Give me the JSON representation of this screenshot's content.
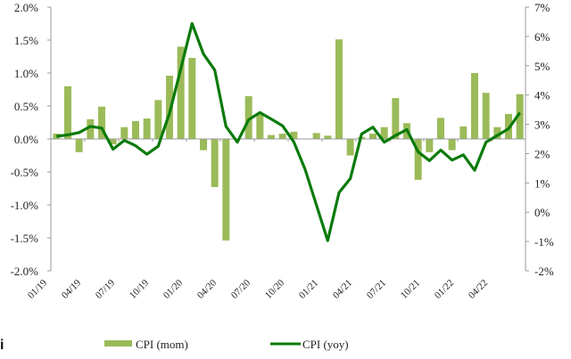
{
  "colors": {
    "bar": "#9bbb59",
    "line": "#0a7a0a",
    "axis": "#999999"
  },
  "corner_glyph": "i",
  "chart_data": {
    "type": "bar+line",
    "grid": false,
    "legend_placement": "bottom",
    "months": [
      "01/19",
      "02/19",
      "03/19",
      "04/19",
      "05/19",
      "06/19",
      "07/19",
      "08/19",
      "09/19",
      "10/19",
      "11/19",
      "12/19",
      "01/20",
      "02/20",
      "03/20",
      "04/20",
      "05/20",
      "06/20",
      "07/20",
      "08/20",
      "09/20",
      "10/20",
      "11/20",
      "12/20",
      "01/21",
      "02/21",
      "03/21",
      "04/21",
      "05/21",
      "06/21",
      "07/21",
      "08/21",
      "09/21",
      "10/21",
      "11/21",
      "12/21",
      "01/22",
      "02/22",
      "03/22",
      "04/22",
      "05/22",
      "06/22"
    ],
    "x_tick_labels": [
      "01/19",
      "04/19",
      "07/19",
      "10/19",
      "01/20",
      "04/20",
      "07/20",
      "10/20",
      "01/21",
      "04/21",
      "07/21",
      "10/21",
      "01/22",
      "04/22"
    ],
    "left_axis": {
      "ylim": [
        -2.0,
        2.0
      ],
      "ticks": [
        "-2.0%",
        "-1.5%",
        "-1.0%",
        "-0.5%",
        "0.0%",
        "0.5%",
        "1.0%",
        "1.5%",
        "2.0%"
      ]
    },
    "right_axis": {
      "ylim": [
        -2,
        7
      ],
      "ticks": [
        "-2%",
        "-1%",
        "0%",
        "1%",
        "2%",
        "3%",
        "4%",
        "5%",
        "6%",
        "7%"
      ]
    },
    "series": [
      {
        "name": "CPI (mom)",
        "type": "bar",
        "axis": "left",
        "values": [
          0.08,
          0.8,
          -0.2,
          0.3,
          0.49,
          -0.08,
          0.18,
          0.27,
          0.31,
          0.59,
          0.96,
          1.4,
          1.23,
          -0.17,
          -0.73,
          -1.54,
          0.0,
          0.65,
          0.37,
          0.06,
          0.08,
          0.11,
          0.0,
          0.09,
          0.05,
          1.51,
          -0.25,
          0.03,
          0.08,
          0.18,
          0.62,
          0.24,
          -0.62,
          -0.2,
          0.32,
          -0.17,
          0.19,
          1.0,
          0.7,
          0.18,
          0.38,
          0.68
        ]
      },
      {
        "name": "CPI (yoy)",
        "type": "line",
        "axis": "right",
        "values": [
          2.59,
          2.64,
          2.72,
          2.93,
          2.87,
          2.15,
          2.45,
          2.27,
          1.98,
          2.25,
          3.38,
          4.9,
          6.44,
          5.4,
          4.85,
          2.93,
          2.39,
          3.16,
          3.4,
          3.18,
          2.95,
          2.4,
          1.46,
          0.24,
          -0.97,
          0.67,
          1.15,
          2.67,
          2.9,
          2.39,
          2.62,
          2.82,
          2.06,
          1.76,
          2.12,
          1.78,
          1.96,
          1.43,
          2.39,
          2.62,
          2.85,
          3.4
        ]
      }
    ]
  }
}
